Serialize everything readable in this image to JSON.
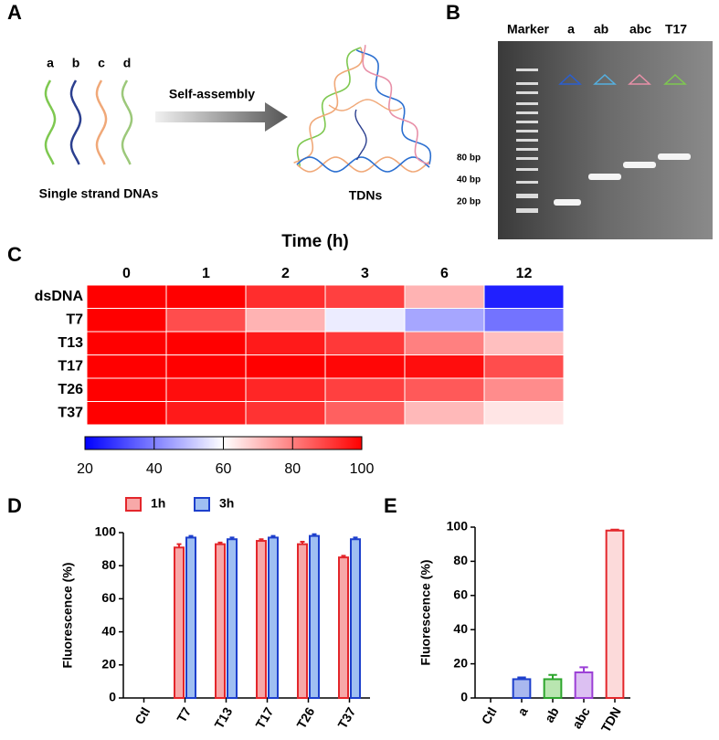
{
  "panel_a": {
    "label": "A",
    "strands": [
      "a",
      "b",
      "c",
      "d"
    ],
    "arrow_label": "Self-assembly",
    "left_caption": "Single strand DNAs",
    "right_caption": "TDNs"
  },
  "panel_b": {
    "label": "B",
    "lanes": [
      "Marker",
      "a",
      "ab",
      "abc",
      "T17"
    ],
    "bp_labels": [
      "80 bp",
      "40 bp",
      "20 bp"
    ]
  },
  "chart_data": [
    {
      "type": "heatmap",
      "label": "C",
      "title": "Time (h)",
      "x": [
        "0",
        "1",
        "2",
        "3",
        "6",
        "12"
      ],
      "y": [
        "dsDNA",
        "T7",
        "T13",
        "T17",
        "T26",
        "T37"
      ],
      "values": [
        [
          100,
          100,
          93,
          90,
          72,
          25
        ],
        [
          100,
          88,
          72,
          57,
          46,
          38
        ],
        [
          100,
          100,
          96,
          91,
          80,
          70
        ],
        [
          100,
          100,
          100,
          99,
          98,
          88
        ],
        [
          100,
          98,
          94,
          90,
          86,
          78
        ],
        [
          100,
          96,
          92,
          85,
          71,
          64
        ]
      ],
      "vlim": [
        20,
        100
      ],
      "vticks": [
        20,
        40,
        60,
        80,
        100
      ],
      "colors": [
        "#0000ff",
        "#ffffff",
        "#ff0000"
      ]
    },
    {
      "type": "bar",
      "label": "D",
      "ylabel": "Fluorescence (%)",
      "categories": [
        "Ctl",
        "T7",
        "T13",
        "T17",
        "T26",
        "T37"
      ],
      "series": [
        {
          "name": "1h",
          "color": "#f7a8a8",
          "edgecolor": "#e3262b",
          "values": [
            null,
            91,
            93,
            95,
            93,
            85
          ],
          "errors": [
            null,
            2,
            1,
            1,
            1.5,
            1
          ]
        },
        {
          "name": "3h",
          "color": "#9fbff2",
          "edgecolor": "#1d3fcc",
          "values": [
            null,
            97,
            96,
            97,
            98,
            96
          ],
          "errors": [
            null,
            1,
            1,
            1,
            1,
            1
          ]
        }
      ],
      "ylim": [
        0,
        100
      ],
      "yticks": [
        0,
        20,
        40,
        60,
        80,
        100
      ]
    },
    {
      "type": "bar",
      "label": "E",
      "ylabel": "Fluorescence (%)",
      "categories": [
        "Ctl",
        "a",
        "ab",
        "abc",
        "TDN"
      ],
      "values": [
        null,
        11,
        11,
        15,
        98
      ],
      "errors": [
        null,
        1,
        2.5,
        3,
        0.5
      ],
      "colors": [
        "#ffffff",
        "#a9b8ef",
        "#b9e6b0",
        "#dcc0f2",
        "#fcdada"
      ],
      "edgecolors": [
        "#000000",
        "#1d3fcc",
        "#2da52d",
        "#9b3fd6",
        "#e3262b"
      ],
      "ylim": [
        0,
        100
      ],
      "yticks": [
        0,
        20,
        40,
        60,
        80,
        100
      ]
    }
  ]
}
